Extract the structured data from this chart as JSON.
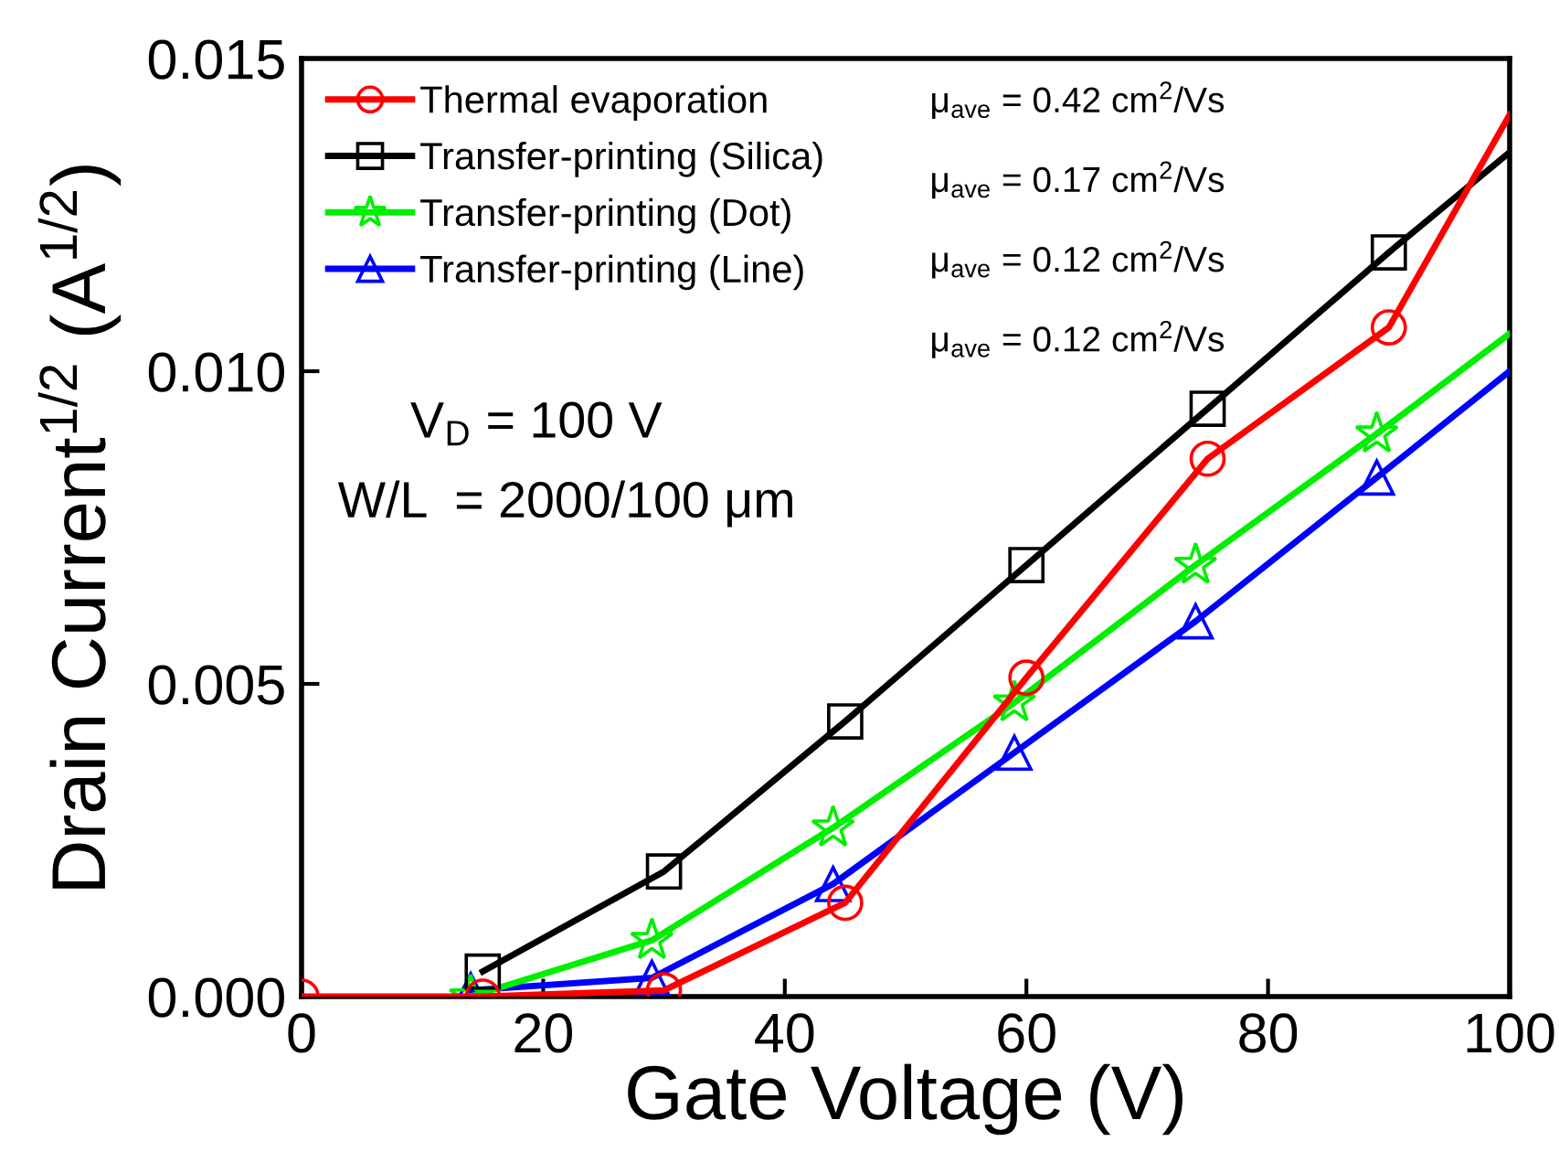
{
  "chart_data": {
    "type": "line",
    "xlabel": "Gate Voltage (V)",
    "ylabel": "Drain Current$^{1/2}$ (A$^{1/2}$)",
    "xlim": [
      0,
      100
    ],
    "ylim": [
      0,
      0.015
    ],
    "xticks": [
      0,
      20,
      40,
      60,
      80,
      100
    ],
    "yticks": [
      {
        "value": 0,
        "label": "0.000"
      },
      {
        "value": 0.005,
        "label": "0.005"
      },
      {
        "value": 0.01,
        "label": "0.010"
      },
      {
        "value": 0.015,
        "label": "0.015"
      }
    ],
    "legend": "top left",
    "grid": false,
    "line_style": "solid",
    "series": [
      {
        "name": "Thermal evaporation",
        "color": "#ff0000",
        "marker": "circle",
        "x": [
          0,
          15,
          30,
          45,
          60,
          75,
          90,
          100
        ],
        "values": [
          0,
          0,
          0.0001,
          0.0015,
          0.0051,
          0.0086,
          0.0107,
          0.0141
        ]
      },
      {
        "name": "Transfer-printing (Silica)",
        "color": "#000000",
        "marker": "square",
        "x": [
          15,
          30,
          45,
          60,
          75,
          90,
          100
        ],
        "values": [
          0.0004,
          0.002,
          0.0044,
          0.0069,
          0.0094,
          0.0119,
          0.0135
        ]
      },
      {
        "name": "Transfer-printing (Dot)",
        "color": "#00ee00",
        "marker": "star",
        "x": [
          14,
          29,
          44,
          59,
          74,
          89,
          100
        ],
        "values": [
          0,
          0.0009,
          0.0027,
          0.0047,
          0.0069,
          0.009,
          0.0106
        ]
      },
      {
        "name": "Transfer-printing (Line)",
        "color": "#0000ff",
        "marker": "triangle",
        "x": [
          14,
          29,
          44,
          59,
          74,
          89,
          100
        ],
        "values": [
          0.0001,
          0.0003,
          0.0018,
          0.0039,
          0.006,
          0.0083,
          0.01
        ]
      }
    ],
    "annotations": [
      "μ$_{ave}$ = 0.42 cm$^{2}$/Vs",
      "μ$_{ave}$ = 0.17 cm$^{2}$/Vs",
      "μ$_{ave}$ = 0.12 cm$^{2}$/Vs",
      "μ$_{ave}$ = 0.12 cm$^{2}$/Vs",
      "V$_{D}$ = 100 V",
      "W/L  = 2000/100 μm"
    ]
  }
}
